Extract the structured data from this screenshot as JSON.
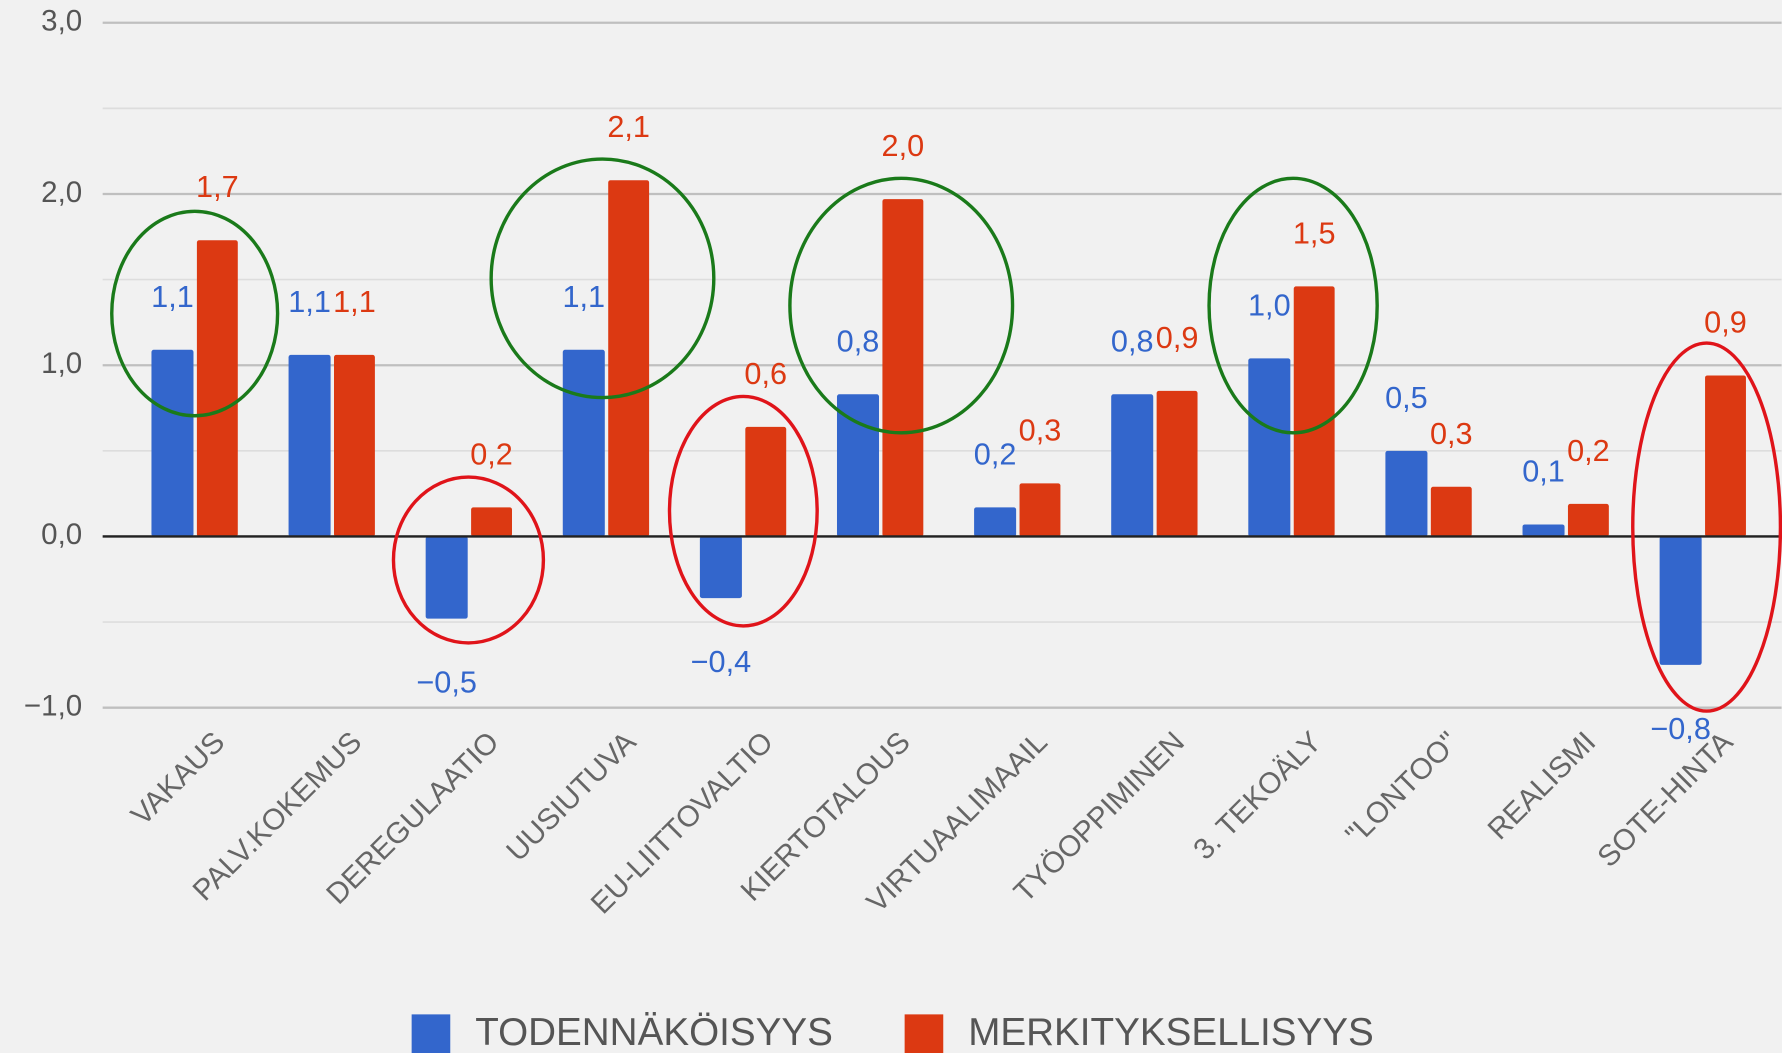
{
  "chart_data": {
    "type": "bar",
    "categories": [
      "VAKAUS",
      "PALV.KOKEMUS",
      "DEREGULAATIO",
      "UUSIUTUVA",
      "EU-LIITTOVALTIO",
      "KIERTOTALOUS",
      "VIRTUAALIMAAIL",
      "TYÖOPPIMINEN",
      "3. TEKOÄLY",
      "\"LONTOO\"",
      "REALISMI",
      "SOTE-HINTA"
    ],
    "series": [
      {
        "name": "TODENNÄKÖISYYS",
        "color": "#3366cc",
        "values": [
          1.09,
          1.06,
          -0.48,
          1.09,
          -0.36,
          0.83,
          0.17,
          0.83,
          1.04,
          0.5,
          0.07,
          -0.75
        ],
        "value_labels": [
          "1,1",
          "1,1",
          "−0,5",
          "1,1",
          "−0,4",
          "0,8",
          "0,2",
          "0,8",
          "1,0",
          "0,5",
          "0,1",
          "−0,8"
        ]
      },
      {
        "name": "MERKITYKSELLISYYS",
        "color": "#dc3912",
        "values": [
          1.73,
          1.06,
          0.17,
          2.08,
          0.64,
          1.97,
          0.31,
          0.85,
          1.46,
          0.29,
          0.19,
          0.94
        ],
        "value_labels": [
          "1,7",
          "1,1",
          "0,2",
          "2,1",
          "0,6",
          "2,0",
          "0,3",
          "0,9",
          "1,5",
          "0,3",
          "0,2",
          "0,9"
        ]
      }
    ],
    "ylim": [
      -1,
      3
    ],
    "yticks": [
      {
        "value": -1,
        "label": "−1,0"
      },
      {
        "value": 0,
        "label": "0,0"
      },
      {
        "value": 1,
        "label": "1,0"
      },
      {
        "value": 2,
        "label": "2,0"
      },
      {
        "value": 3,
        "label": "3,0"
      }
    ],
    "yminor": [
      -0.5,
      0.5,
      1.5,
      2.5
    ],
    "grid": true,
    "legend": "bottom"
  }
}
